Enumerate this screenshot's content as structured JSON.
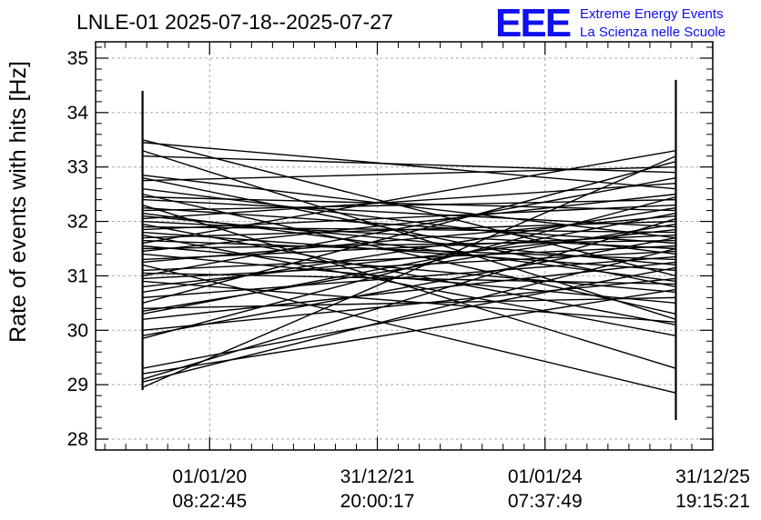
{
  "chart_data": {
    "type": "line",
    "title": "LNLE-01 2025-07-18--2025-07-27",
    "ylabel": "Rate of events with hits [Hz]",
    "xlabel": "",
    "ylim": [
      27.8,
      35.3
    ],
    "yticks": [
      "28",
      "29",
      "30",
      "31",
      "32",
      "33",
      "34",
      "35"
    ],
    "xticks": [
      {
        "date": "01/01/20",
        "time": "08:22:45",
        "x": 0
      },
      {
        "date": "31/12/21",
        "time": "20:00:17",
        "x": 1
      },
      {
        "date": "01/01/24",
        "time": "07:37:49",
        "x": 2
      },
      {
        "date": "31/12/25",
        "time": "19:15:21",
        "x": 3
      }
    ],
    "xlim": [
      -0.68,
      3.0
    ],
    "grid": true,
    "x_start": -0.4,
    "x_end": 2.78,
    "start_error_range": [
      28.9,
      34.4
    ],
    "end_error_range": [
      28.35,
      34.6
    ],
    "series_start": [
      33.5,
      33.45,
      33.3,
      33.2,
      32.85,
      32.8,
      32.75,
      32.6,
      32.5,
      32.45,
      32.4,
      32.3,
      32.25,
      32.2,
      32.15,
      32.1,
      32.05,
      32.0,
      31.95,
      31.9,
      31.85,
      31.8,
      31.75,
      31.7,
      31.65,
      31.6,
      31.55,
      31.5,
      31.45,
      31.4,
      31.3,
      31.25,
      31.2,
      31.1,
      31.05,
      31.0,
      30.95,
      30.9,
      30.8,
      30.7,
      30.6,
      30.5,
      30.4,
      30.35,
      30.3,
      30.2,
      30.0,
      29.9,
      29.85,
      29.3,
      29.2,
      29.1,
      29.05,
      28.95
    ],
    "series_end": [
      31.0,
      32.6,
      30.2,
      32.9,
      31.7,
      30.8,
      33.0,
      31.4,
      30.3,
      32.2,
      31.9,
      29.3,
      31.6,
      32.4,
      30.9,
      31.2,
      32.7,
      31.5,
      30.1,
      31.8,
      32.3,
      31.1,
      29.9,
      32.0,
      31.3,
      33.3,
      30.7,
      31.65,
      32.5,
      30.5,
      31.75,
      32.1,
      28.85,
      31.55,
      30.85,
      32.8,
      31.45,
      30.15,
      31.85,
      32.25,
      31.35,
      33.1,
      30.6,
      31.95,
      32.15,
      31.25,
      30.95,
      31.7,
      32.45,
      31.15,
      30.75,
      32.05,
      31.5,
      33.2
    ]
  },
  "logo": {
    "mark": "EEE",
    "line1": "Extreme Energy Events",
    "line2": "La Scienza nelle Scuole"
  }
}
